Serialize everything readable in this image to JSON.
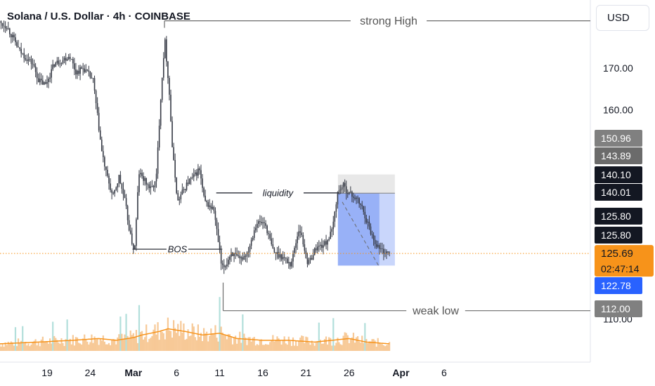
{
  "header": {
    "title": "Solana / U.S. Dollar · 4h · COINBASE",
    "currency_button": "USD"
  },
  "chart_data": {
    "type": "candlestick",
    "symbol": "SOLUSD",
    "exchange": "COINBASE",
    "interval": "4h",
    "y_axis": {
      "ticks": [
        {
          "value": 170,
          "label": "170.00"
        },
        {
          "value": 160,
          "label": "160.00"
        },
        {
          "value": 110,
          "label": "110.00"
        }
      ],
      "range": [
        103,
        183
      ]
    },
    "x_axis": {
      "ticks": [
        {
          "day": 19,
          "label": "19",
          "bold": false
        },
        {
          "day": 24,
          "label": "24",
          "bold": false
        },
        {
          "day": 29,
          "label": "Mar",
          "bold": true
        },
        {
          "day": 34,
          "label": "6",
          "bold": false
        },
        {
          "day": 39,
          "label": "11",
          "bold": false
        },
        {
          "day": 44,
          "label": "16",
          "bold": false
        },
        {
          "day": 49,
          "label": "21",
          "bold": false
        },
        {
          "day": 54,
          "label": "26",
          "bold": false
        },
        {
          "day": 60,
          "label": "Apr",
          "bold": true
        },
        {
          "day": 65,
          "label": "6",
          "bold": false
        }
      ]
    },
    "price_anchors": [
      [
        13.5,
        181
      ],
      [
        14.5,
        180
      ],
      [
        16.0,
        174
      ],
      [
        17.5,
        171
      ],
      [
        18.2,
        167
      ],
      [
        19.0,
        166
      ],
      [
        20.0,
        171
      ],
      [
        21.0,
        172
      ],
      [
        21.8,
        173
      ],
      [
        22.5,
        169
      ],
      [
        23.4,
        170
      ],
      [
        24.5,
        167
      ],
      [
        25.5,
        150
      ],
      [
        26.0,
        145
      ],
      [
        26.8,
        139
      ],
      [
        27.5,
        144
      ],
      [
        28.2,
        138
      ],
      [
        28.8,
        130
      ],
      [
        29.3,
        126
      ],
      [
        29.8,
        145
      ],
      [
        30.5,
        143
      ],
      [
        31.2,
        141
      ],
      [
        31.8,
        143
      ],
      [
        32.3,
        162
      ],
      [
        32.8,
        177
      ],
      [
        33.3,
        165
      ],
      [
        33.7,
        150
      ],
      [
        34.3,
        138
      ],
      [
        35.0,
        141
      ],
      [
        35.6,
        143
      ],
      [
        36.2,
        144
      ],
      [
        36.8,
        146
      ],
      [
        37.4,
        138
      ],
      [
        38.0,
        137
      ],
      [
        38.5,
        136
      ],
      [
        39.1,
        127
      ],
      [
        39.4,
        122
      ],
      [
        39.9,
        123
      ],
      [
        40.5,
        126
      ],
      [
        41.5,
        124
      ],
      [
        42.4,
        126
      ],
      [
        43.4,
        133
      ],
      [
        44.4,
        133
      ],
      [
        45.4,
        126
      ],
      [
        46.4,
        125
      ],
      [
        47.4,
        123
      ],
      [
        48.4,
        132
      ],
      [
        49.4,
        123
      ],
      [
        50.3,
        127
      ],
      [
        51.4,
        128
      ],
      [
        52.2,
        131
      ],
      [
        52.8,
        140
      ],
      [
        53.4,
        142
      ],
      [
        54.2,
        140
      ],
      [
        54.9,
        139
      ],
      [
        55.6,
        137
      ],
      [
        56.3,
        133
      ],
      [
        57.0,
        129
      ],
      [
        57.6,
        127
      ],
      [
        58.3,
        126
      ],
      [
        58.7,
        125.7
      ]
    ],
    "volume_anchors": [
      [
        13.5,
        8
      ],
      [
        18,
        10
      ],
      [
        22,
        12
      ],
      [
        25,
        14
      ],
      [
        27,
        12
      ],
      [
        29,
        15
      ],
      [
        30,
        18
      ],
      [
        32,
        22
      ],
      [
        33,
        25
      ],
      [
        35,
        22
      ],
      [
        37,
        18
      ],
      [
        39,
        20
      ],
      [
        41,
        14
      ],
      [
        44,
        12
      ],
      [
        47,
        12
      ],
      [
        50,
        10
      ],
      [
        52,
        12
      ],
      [
        54,
        14
      ],
      [
        56,
        10
      ],
      [
        58.7,
        8
      ]
    ],
    "current_price": 125.69,
    "countdown": "02:47:14",
    "price_labels": [
      {
        "value": 150.96,
        "label": "150.96",
        "style": "gray"
      },
      {
        "value": 143.89,
        "label": "143.89",
        "style": "darkgray"
      },
      {
        "value": 140.1,
        "label": "140.10",
        "style": "black"
      },
      {
        "value": 140.01,
        "label": "140.01",
        "style": "black"
      },
      {
        "value": 125.8,
        "label": "125.80",
        "style": "black"
      },
      {
        "value": 125.8,
        "label": "125.80",
        "style": "black"
      },
      {
        "value": 122.78,
        "label": "122.78",
        "style": "blue"
      },
      {
        "value": 112.0,
        "label": "112.00",
        "style": "gray"
      }
    ],
    "annotations": [
      {
        "label": "strong High",
        "price": 181.3,
        "start_day": 32.6,
        "style": "solid",
        "italic": false
      },
      {
        "label": "weak low",
        "price": 112.0,
        "start_day": 39.4,
        "style": "solid",
        "italic": false
      },
      {
        "label": "liquidity",
        "price": 140.15,
        "start_day": 38.6,
        "end_day": 52.9,
        "style": "solid",
        "italic": true
      },
      {
        "label": "BOS",
        "price": 126.7,
        "start_day": 28.9,
        "end_day": 39.3,
        "style": "solid",
        "italic": true
      }
    ],
    "short_position": {
      "start_day": 52.7,
      "end_day": 59.3,
      "entry": 140.1,
      "stop": 143.89,
      "target": 122.78
    },
    "colors": {
      "candle": "#363a45",
      "current_price": "#f7931a",
      "target": "#2962ff",
      "target_zone": "#6f8ff5",
      "stop_zone": "#d9d9d9",
      "ma_line": "#f7931a",
      "volume": "#f7c997",
      "volume_spike": "#b2dfdb",
      "grid_line": "#555555"
    }
  }
}
